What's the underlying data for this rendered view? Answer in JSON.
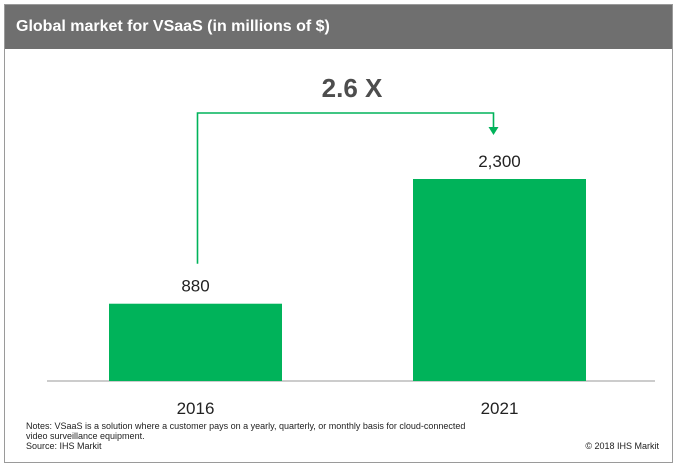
{
  "header": {
    "title": "Global market for VSaaS (in millions of $)"
  },
  "annotation": {
    "growth_label": "2.6 X"
  },
  "footer": {
    "notes": "Notes: VSaaS is a solution where a customer pays on a yearly, quarterly, or monthly basis for cloud-connected video surveillance equipment.",
    "source": "Source: IHS Markit",
    "copyright": "© 2018 IHS Markit"
  },
  "colors": {
    "bar": "#00b35a",
    "arrow": "#00b35a",
    "header_bg": "#6f6f6f",
    "axis": "#999999"
  },
  "chart_data": {
    "type": "bar",
    "title": "Global market for VSaaS (in millions of $)",
    "categories": [
      "2016",
      "2021"
    ],
    "values": [
      880,
      2300
    ],
    "data_labels": [
      "880",
      "2,300"
    ],
    "xlabel": "",
    "ylabel": "",
    "ylim": [
      0,
      2300
    ],
    "grid": false,
    "legend": "none"
  }
}
